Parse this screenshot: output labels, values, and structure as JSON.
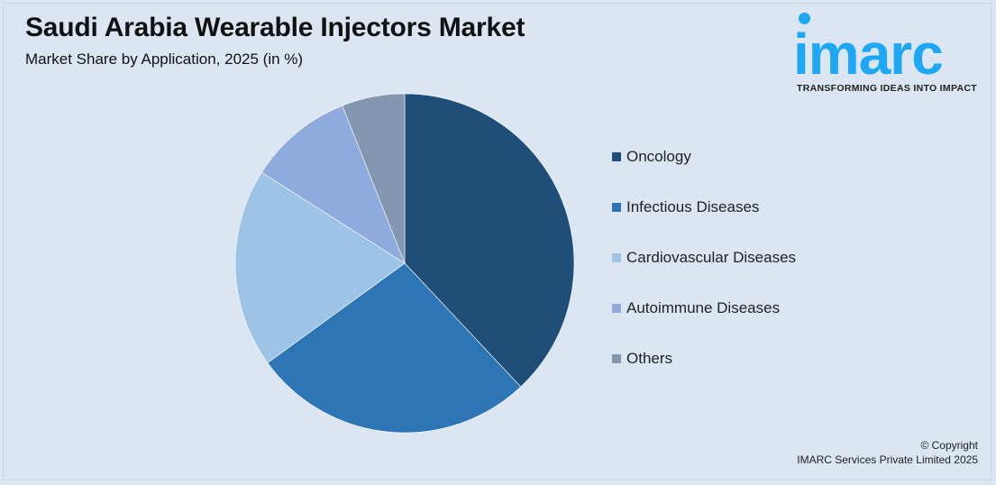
{
  "chart_data": {
    "type": "pie",
    "title": "Saudi Arabia Wearable Injectors Market",
    "subtitle": "Market Share by Application, 2025 (in %)",
    "categories": [
      "Oncology",
      "Infectious Diseases",
      "Cardiovascular Diseases",
      "Autoimmune Diseases",
      "Others"
    ],
    "values": [
      38,
      27,
      19,
      10,
      6
    ],
    "colors": [
      "#1f4e79",
      "#2e75b6",
      "#9dc3e6",
      "#8faadc",
      "#8497b0"
    ],
    "legend_position": "right",
    "start_angle": "top, clockwise"
  },
  "logo": {
    "word": "imarc",
    "tagline": "TRANSFORMING IDEAS INTO IMPACT",
    "color": "#1ea7f2"
  },
  "footer": {
    "line1": "© Copyright",
    "line2": "IMARC Services Private Limited 2025"
  }
}
